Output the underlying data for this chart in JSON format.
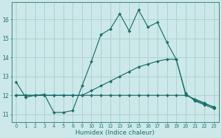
{
  "xlabel": "Humidex (Indice chaleur)",
  "background_color": "#cde8e8",
  "grid_color": "#aad0d0",
  "line_color": "#1a6e6a",
  "x_labels": [
    "0",
    "1",
    "2",
    "3",
    "4",
    "5",
    "6",
    "9",
    "10",
    "11",
    "12",
    "13",
    "14",
    "15",
    "16",
    "17",
    "18",
    "19",
    "20",
    "21",
    "22",
    "23"
  ],
  "n_points": 22,
  "ylim": [
    10.6,
    16.9
  ],
  "yticks": [
    11,
    12,
    13,
    14,
    15,
    16
  ],
  "series": [
    {
      "y": [
        12.7,
        11.9,
        12.0,
        12.05,
        11.1,
        11.1,
        11.2,
        12.5,
        13.8,
        15.2,
        15.5,
        16.3,
        15.4,
        16.5,
        15.6,
        15.85,
        14.8,
        13.9,
        12.1,
        11.7,
        11.5,
        11.3
      ]
    },
    {
      "y": [
        12.0,
        12.0,
        12.0,
        12.0,
        12.0,
        12.0,
        12.0,
        12.0,
        12.25,
        12.5,
        12.75,
        13.0,
        13.25,
        13.5,
        13.65,
        13.8,
        13.9,
        13.9,
        12.05,
        11.75,
        11.55,
        11.4
      ]
    },
    {
      "y": [
        12.0,
        12.0,
        12.0,
        12.0,
        12.0,
        12.0,
        12.0,
        12.0,
        12.0,
        12.0,
        12.0,
        12.0,
        12.0,
        12.0,
        12.0,
        12.0,
        12.0,
        12.0,
        12.0,
        11.8,
        11.6,
        11.35
      ]
    }
  ]
}
